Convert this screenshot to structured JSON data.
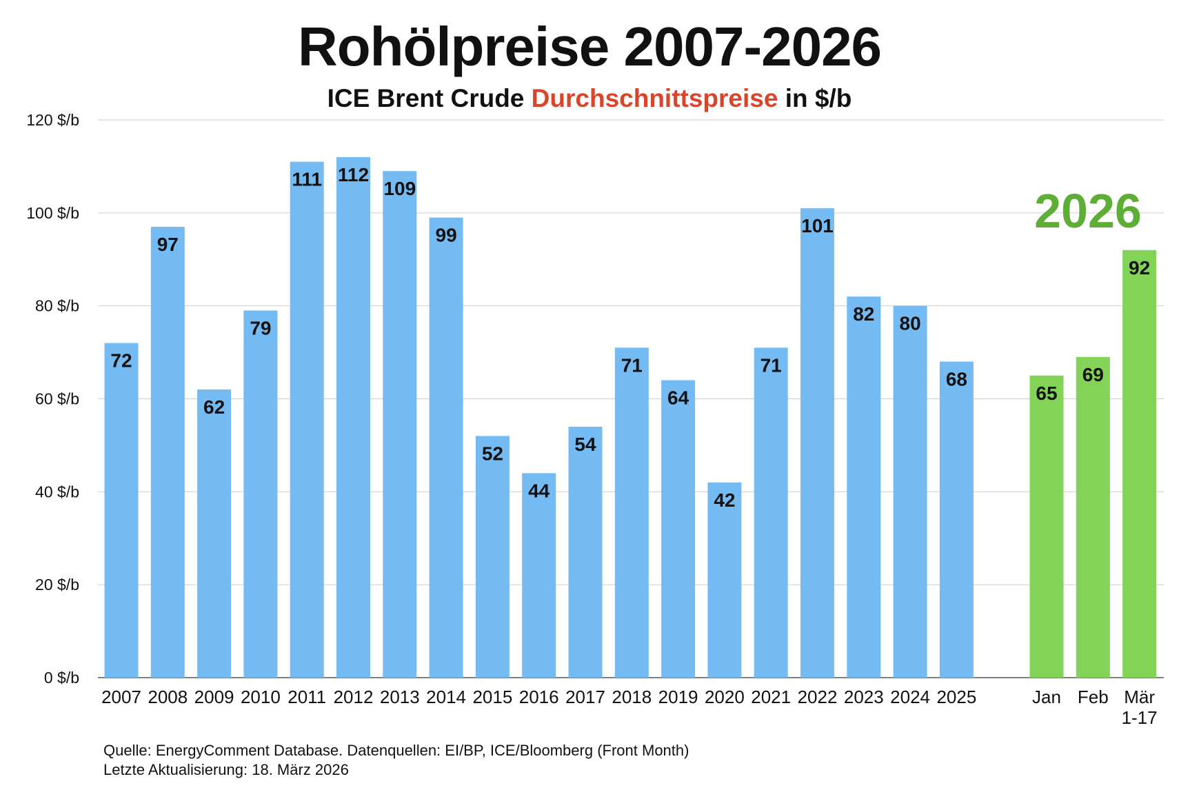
{
  "title": "Rohölpreise 2007-2026",
  "subtitle": {
    "part1": "ICE Brent Crude",
    "part2": "Durchschnittspreise",
    "part3": "in $/b"
  },
  "colors": {
    "annual_bar": "#74bbf4",
    "monthly_bar": "#82d356",
    "highlight_text": "#5dad37",
    "subtitle_accent": "#d9452b",
    "grid": "#d3d3d3"
  },
  "chart_data": {
    "type": "bar",
    "y_axis": {
      "min": 0,
      "max": 120,
      "step": 20,
      "tick_labels": [
        "0 $/b",
        "20 $/b",
        "40 $/b",
        "60 $/b",
        "80 $/b",
        "100 $/b",
        "120 $/b"
      ]
    },
    "grid": true,
    "groups": [
      {
        "name": "",
        "categories": [
          "2007",
          "2008",
          "2009",
          "2010",
          "2011",
          "2012",
          "2013",
          "2014",
          "2015",
          "2016",
          "2017",
          "2018",
          "2019",
          "2020",
          "2021",
          "2022",
          "2023",
          "2024",
          "2025"
        ],
        "values": [
          72,
          97,
          62,
          79,
          111,
          112,
          109,
          99,
          52,
          44,
          54,
          71,
          64,
          42,
          71,
          101,
          82,
          80,
          68
        ]
      },
      {
        "name": "2026",
        "categories": [
          "Jan",
          "Feb",
          "Mär\n1-17"
        ],
        "values": [
          65,
          69,
          92
        ]
      }
    ],
    "data_labels": true
  },
  "footer": {
    "source": "Quelle: EnergyComment Database. Datenquellen: EI/BP, ICE/Bloomberg (Front Month)",
    "updated": "Letzte Aktualisierung: 18. März 2026"
  }
}
